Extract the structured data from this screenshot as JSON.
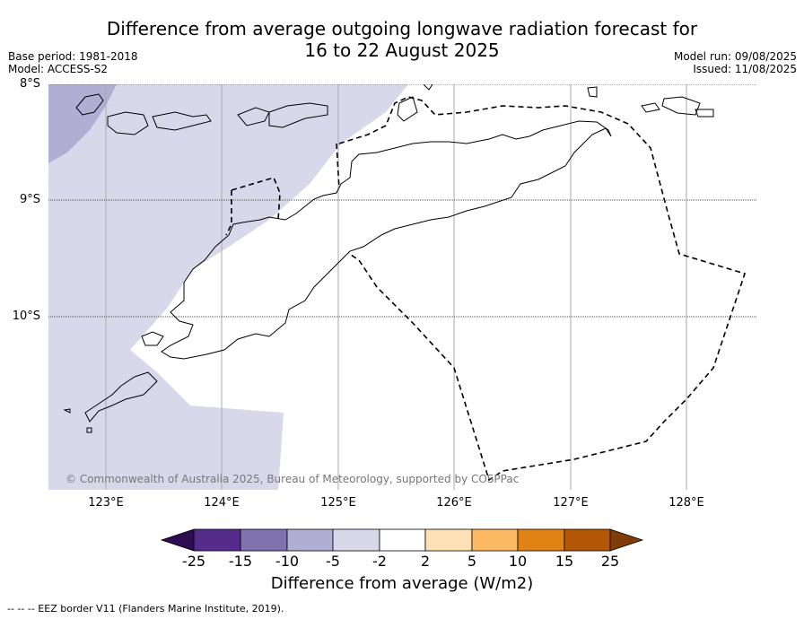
{
  "title": {
    "line1": "Difference from average outgoing longwave radiation forecast for",
    "line2": "16 to 22 August 2025"
  },
  "meta": {
    "base_period": "Base period: 1981-2018",
    "model": "Model: ACCESS-S2",
    "model_run": "Model run: 09/08/2025",
    "issued": "Issued: 11/08/2025"
  },
  "map": {
    "lat_labels": [
      "8°S",
      "9°S",
      "10°S"
    ],
    "lon_labels": [
      "123°E",
      "124°E",
      "125°E",
      "126°E",
      "127°E",
      "128°E"
    ],
    "copyright": "© Commonwealth of Australia 2025, Bureau of Meteorology, supported by COSPPac",
    "colors": {
      "land_border": "#000000",
      "minus5_to_minus2": "#d8d8ea",
      "minus10_to_minus5": "#b1aed3",
      "grid": "#aaaaaa"
    }
  },
  "colorbar": {
    "ticks": [
      "-25",
      "-15",
      "-10",
      "-5",
      "-2",
      "2",
      "5",
      "10",
      "15",
      "25"
    ],
    "colors": [
      "#2d0c52",
      "#552c8c",
      "#7f72ae",
      "#b1aed3",
      "#d8d8ea",
      "#ffffff",
      "#fee0b6",
      "#fdb863",
      "#e08214",
      "#b35806",
      "#7f3b08"
    ],
    "label": "Difference from average (W/m2)"
  },
  "footnote": "--  --  -- EEZ border V11 (Flanders Marine Institute, 2019)."
}
